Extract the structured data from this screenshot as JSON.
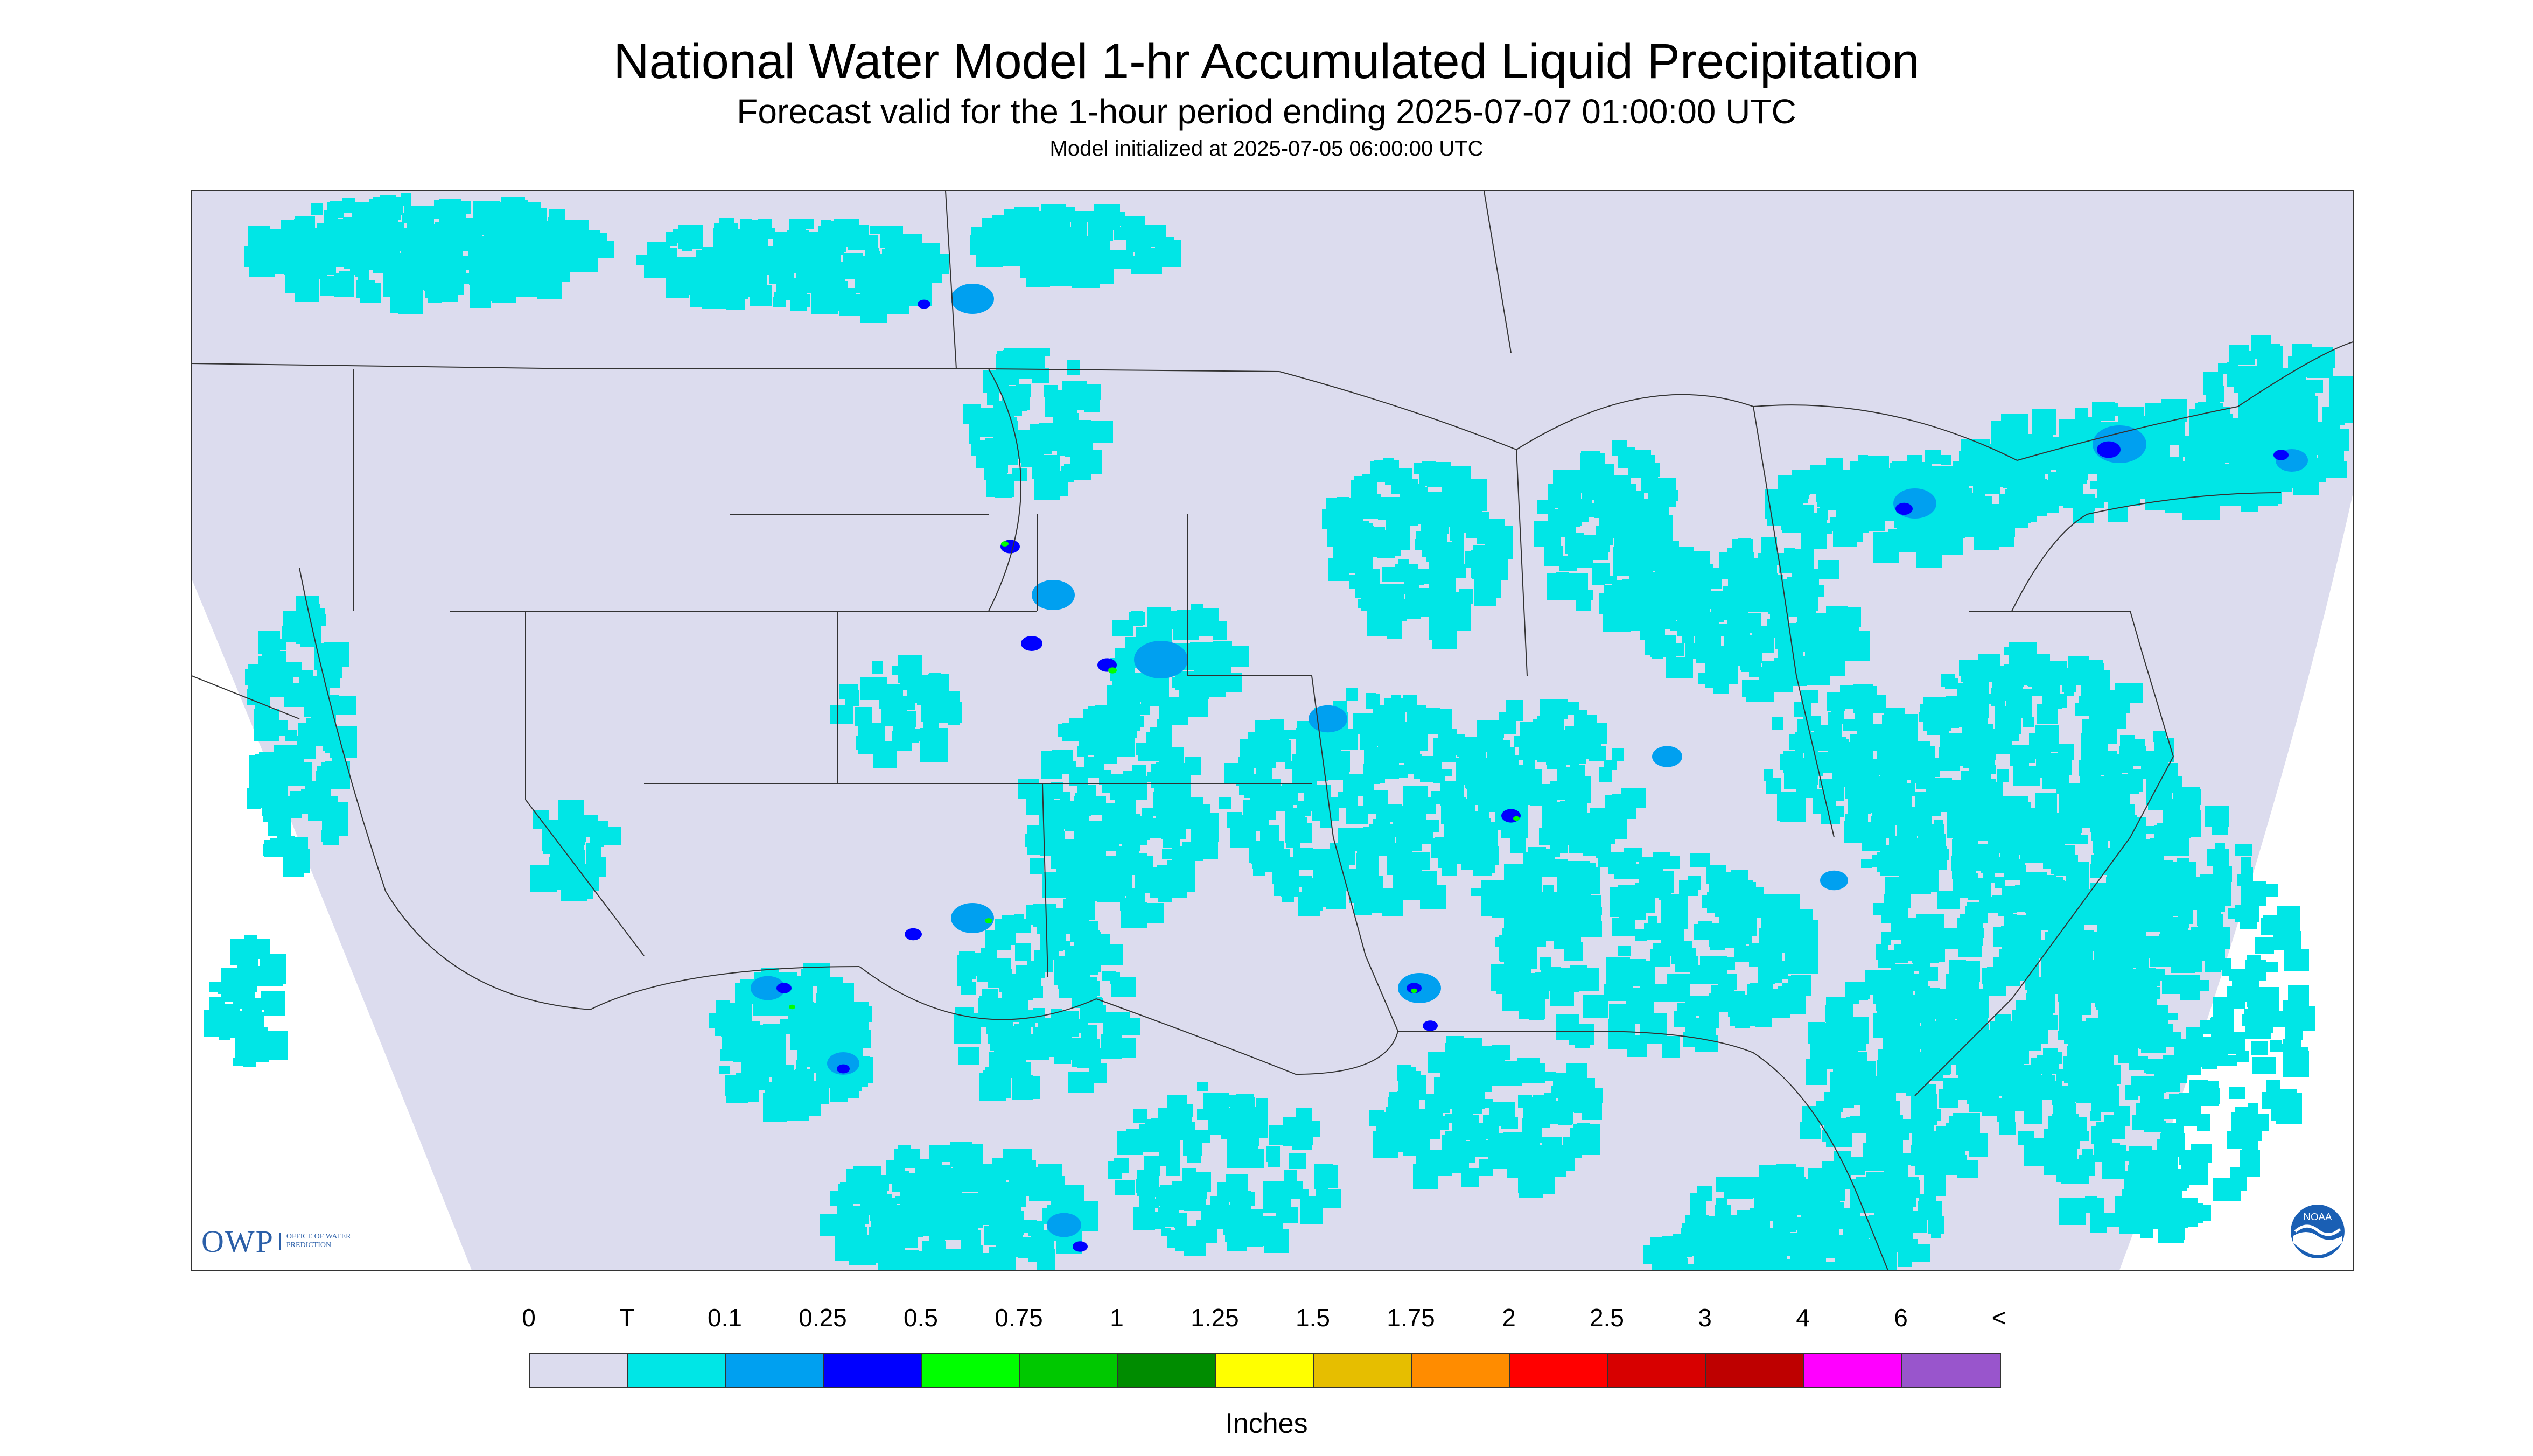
{
  "header": {
    "title": "National Water Model 1-hr Accumulated Liquid Precipitation",
    "subtitle": "Forecast valid for the 1-hour period ending 2025-07-07 01:00:00 UTC",
    "init": "Model initialized at 2025-07-05 06:00:00 UTC"
  },
  "logos": {
    "owp_text": "OWP",
    "owp_sub": "OFFICE OF WATER PREDICTION",
    "noaa_text": "NOAA"
  },
  "legend": {
    "labels": [
      "0",
      "T",
      "0.1",
      "0.25",
      "0.5",
      "0.75",
      "1",
      "1.25",
      "1.5",
      "1.75",
      "2",
      "2.5",
      "3",
      "4",
      "6",
      "<"
    ],
    "colors": [
      "#dcdcee",
      "#00e6e6",
      "#00a0f0",
      "#0000ff",
      "#00ff00",
      "#00c800",
      "#008c00",
      "#ffff00",
      "#e6be00",
      "#ff8c00",
      "#ff0000",
      "#d70000",
      "#be0000",
      "#ff00ff",
      "#9955cc"
    ],
    "units": "Inches"
  },
  "map": {
    "background": "#dcdcee",
    "trace_color": "#00e6e6",
    "light_color": "#00a0f0",
    "heavy_color": "#0000ff",
    "green_color": "#00ff00",
    "boundary_color": "#333333"
  }
}
